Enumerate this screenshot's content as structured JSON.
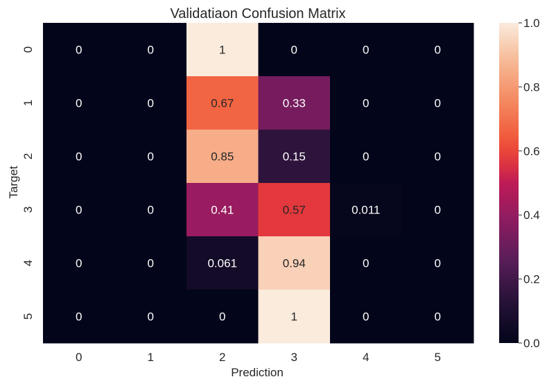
{
  "chart_data": {
    "type": "heatmap",
    "title": "Validatiaon Confusion Matrix",
    "xlabel": "Prediction",
    "ylabel": "Target",
    "x_categories": [
      "0",
      "1",
      "2",
      "3",
      "4",
      "5"
    ],
    "y_categories": [
      "0",
      "1",
      "2",
      "3",
      "4",
      "5"
    ],
    "values": [
      [
        0,
        0,
        1,
        0,
        0,
        0
      ],
      [
        0,
        0,
        0.67,
        0.33,
        0,
        0
      ],
      [
        0,
        0,
        0.85,
        0.15,
        0,
        0
      ],
      [
        0,
        0,
        0.41,
        0.57,
        0.011,
        0
      ],
      [
        0,
        0,
        0.061,
        0.94,
        0,
        0
      ],
      [
        0,
        0,
        0,
        1,
        0,
        0
      ]
    ],
    "labels": [
      [
        "0",
        "0",
        "1",
        "0",
        "0",
        "0"
      ],
      [
        "0",
        "0",
        "0.67",
        "0.33",
        "0",
        "0"
      ],
      [
        "0",
        "0",
        "0.85",
        "0.15",
        "0",
        "0"
      ],
      [
        "0",
        "0",
        "0.41",
        "0.57",
        "0.011",
        "0"
      ],
      [
        "0",
        "0",
        "0.061",
        "0.94",
        "0",
        "0"
      ],
      [
        "0",
        "0",
        "0",
        "1",
        "0",
        "0"
      ]
    ],
    "colorbar": {
      "range": [
        0.0,
        1.0
      ],
      "ticks": [
        "0.0",
        "0.2",
        "0.4",
        "0.6",
        "0.8",
        "1.0"
      ],
      "colormap": "rocket"
    },
    "grid": false
  }
}
